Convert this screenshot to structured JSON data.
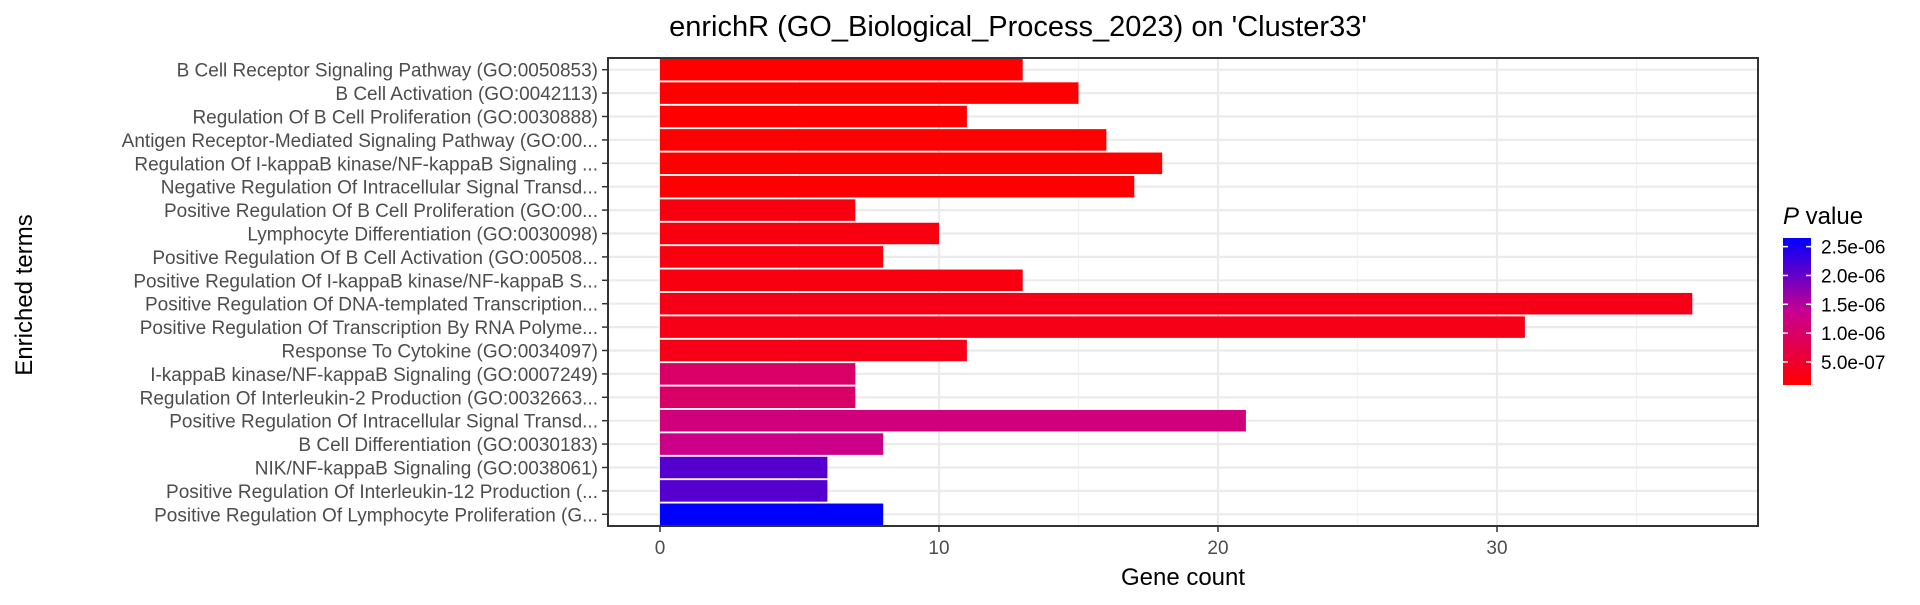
{
  "chart_data": {
    "type": "bar",
    "orientation": "horizontal",
    "title": "enrichR (GO_Biological_Process_2023) on 'Cluster33'",
    "xlabel": "Gene count",
    "ylabel": "Enriched terms",
    "xlim": [
      0,
      38
    ],
    "xticks": [
      0,
      10,
      20,
      30
    ],
    "grid": true,
    "legend": {
      "title_italic": "P",
      "title_rest": " value",
      "placement": "right",
      "ticks": [
        {
          "label": "2.5e-06",
          "value": 2.5e-06
        },
        {
          "label": "2.0e-06",
          "value": 2e-06
        },
        {
          "label": "1.5e-06",
          "value": 1.5e-06
        },
        {
          "label": "1.0e-06",
          "value": 1e-06
        },
        {
          "label": "5.0e-07",
          "value": 5e-07
        }
      ],
      "range": [
        1e-07,
        2.65e-06
      ],
      "color_low": "#ff0000",
      "color_mid": "#c80090",
      "color_high": "#0000ff"
    },
    "categories": [
      "B Cell Receptor Signaling Pathway (GO:0050853)",
      "B Cell Activation (GO:0042113)",
      "Regulation Of B Cell Proliferation (GO:0030888)",
      "Antigen Receptor-Mediated Signaling Pathway (GO:00...",
      "Regulation Of I-kappaB kinase/NF-kappaB Signaling ...",
      "Negative Regulation Of Intracellular Signal Transd...",
      "Positive Regulation Of B Cell Proliferation (GO:00...",
      "Lymphocyte Differentiation (GO:0030098)",
      "Positive Regulation Of B Cell Activation (GO:00508...",
      "Positive Regulation Of I-kappaB kinase/NF-kappaB S...",
      "Positive Regulation Of DNA-templated Transcription...",
      "Positive Regulation Of Transcription By RNA Polyme...",
      "Response To Cytokine (GO:0034097)",
      "I-kappaB kinase/NF-kappaB Signaling (GO:0007249)",
      "Regulation Of Interleukin-2 Production (GO:0032663...",
      "Positive Regulation Of Intracellular Signal Transd...",
      "B Cell Differentiation (GO:0030183)",
      "NIK/NF-kappaB Signaling (GO:0038061)",
      "Positive Regulation Of Interleukin-12 Production (...",
      "Positive Regulation Of Lymphocyte Proliferation (G..."
    ],
    "values": [
      13,
      15,
      11,
      16,
      18,
      17,
      7,
      10,
      8,
      13,
      37,
      31,
      11,
      7,
      7,
      21,
      8,
      6,
      6,
      8
    ],
    "p_values": [
      1e-07,
      1e-07,
      1e-07,
      1e-07,
      1e-07,
      1.2e-07,
      2.5e-07,
      2.5e-07,
      2.5e-07,
      2.5e-07,
      3e-07,
      3e-07,
      3e-07,
      1e-06,
      1e-06,
      1.2e-06,
      1.3e-06,
      2.1e-06,
      2.1e-06,
      2.65e-06
    ]
  }
}
